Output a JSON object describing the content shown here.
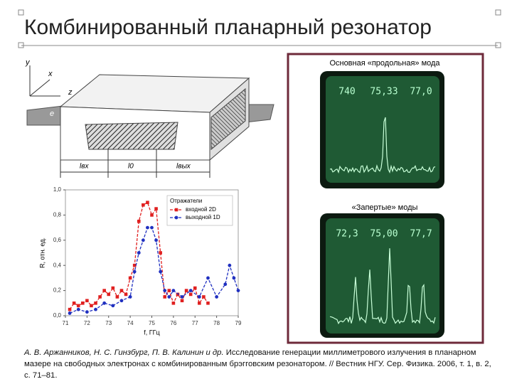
{
  "slide": {
    "title": "Комбинированный планарный резонатор",
    "diagram": {
      "y": "y",
      "x": "x",
      "z": "z",
      "e": "e",
      "l_in": "lвх",
      "l_0": "l0",
      "l_out": "lвых"
    },
    "oscillograms": [
      {
        "caption": "Основная «продольная» мода",
        "readings": [
          "740",
          "75,33",
          "77,0"
        ]
      },
      {
        "caption": "«Запертые» моды",
        "readings": [
          "72,3",
          "75,00",
          "77,7"
        ]
      }
    ],
    "citation": {
      "authors": "А. В. Аржанников, Н. С. Гинзбург, П. В. Калинин и др.",
      "text": "Исследование генерации миллиметрового излучения в планарном мазере на свободных электронах с комбинированным брэгговским резонатором. // Вестник НГУ. Сер. Физика. 2006, т. 1, в. 2, с. 71–81."
    }
  },
  "chart_data": {
    "type": "line",
    "xlabel": "f, ГГц",
    "ylabel": "R, отн. ед.",
    "legend_title": "Отражатели",
    "legend": "top-right",
    "xlim": [
      71,
      79
    ],
    "xticks": [
      71,
      72,
      73,
      74,
      75,
      76,
      77,
      78,
      79
    ],
    "ylim": [
      0,
      1.0
    ],
    "yticks": [
      {
        "value": 0,
        "label": "0,0"
      },
      {
        "value": 0.2,
        "label": "0,2"
      },
      {
        "value": 0.4,
        "label": "0,4"
      },
      {
        "value": 0.6,
        "label": "0,6"
      },
      {
        "value": 0.8,
        "label": "0,8"
      },
      {
        "value": 1.0,
        "label": "1,0"
      }
    ],
    "series": [
      {
        "name": "входной 2D",
        "color": "#e02020",
        "marker": "square",
        "x": [
          71.2,
          71.4,
          71.6,
          71.8,
          72.0,
          72.2,
          72.4,
          72.6,
          72.8,
          73.0,
          73.2,
          73.4,
          73.6,
          73.8,
          74.0,
          74.2,
          74.4,
          74.6,
          74.8,
          75.0,
          75.2,
          75.4,
          75.6,
          75.8,
          76.0,
          76.2,
          76.4,
          76.6,
          76.8,
          77.0,
          77.2,
          77.4,
          77.6
        ],
        "values": [
          0.05,
          0.1,
          0.08,
          0.1,
          0.12,
          0.08,
          0.1,
          0.15,
          0.2,
          0.17,
          0.22,
          0.15,
          0.2,
          0.17,
          0.3,
          0.4,
          0.75,
          0.88,
          0.9,
          0.8,
          0.85,
          0.5,
          0.15,
          0.2,
          0.1,
          0.17,
          0.12,
          0.2,
          0.17,
          0.22,
          0.1,
          0.15,
          0.1
        ]
      },
      {
        "name": "выходной 1D",
        "color": "#2030c0",
        "marker": "circle",
        "x": [
          71.2,
          71.6,
          72.0,
          72.4,
          72.8,
          73.2,
          73.6,
          74.0,
          74.2,
          74.4,
          74.6,
          74.8,
          75.0,
          75.2,
          75.4,
          75.6,
          75.8,
          76.0,
          76.4,
          76.8,
          77.2,
          77.6,
          78.0,
          78.4,
          78.6,
          78.8,
          79.0
        ],
        "values": [
          0.02,
          0.05,
          0.03,
          0.05,
          0.1,
          0.08,
          0.12,
          0.15,
          0.35,
          0.5,
          0.6,
          0.7,
          0.7,
          0.6,
          0.35,
          0.2,
          0.15,
          0.2,
          0.15,
          0.2,
          0.15,
          0.3,
          0.15,
          0.25,
          0.4,
          0.3,
          0.2
        ]
      }
    ]
  }
}
